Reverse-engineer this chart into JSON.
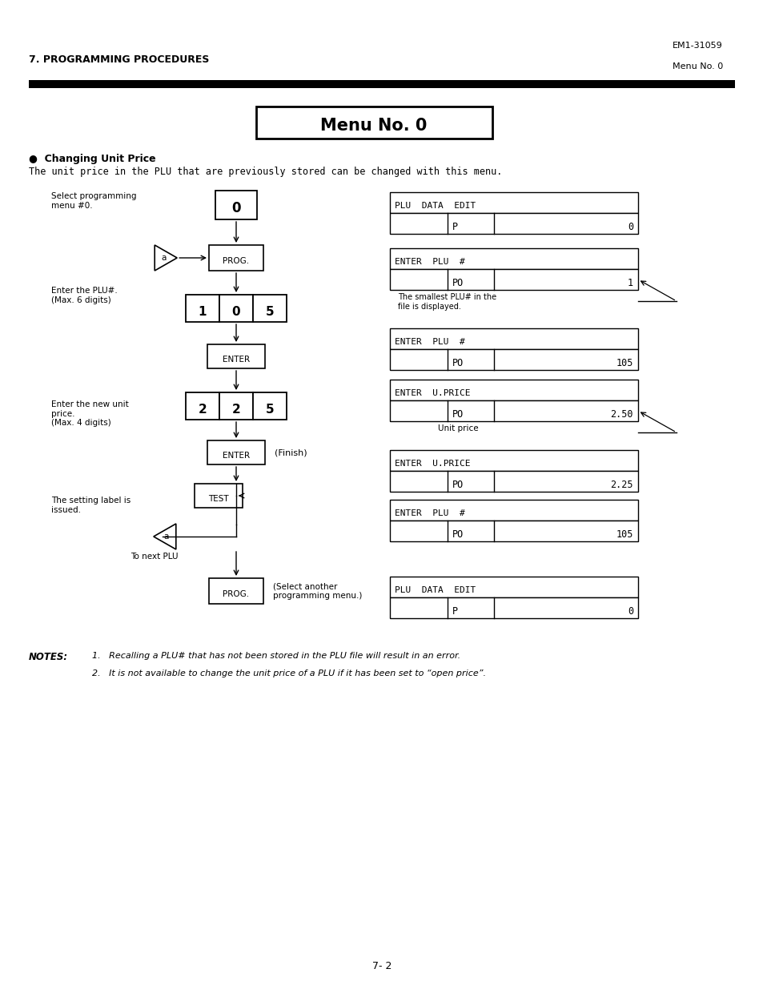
{
  "page_header_left": "7. PROGRAMMING PROCEDURES",
  "page_header_right_top": "EM1-31059",
  "page_header_right_bottom": "Menu No. 0",
  "title": "Menu No. 0",
  "section_bullet": "Changing Unit Price",
  "section_desc": "The unit price in the PLU that are previously stored can be changed with this menu.",
  "notes": [
    "1.   Recalling a PLU# that has not been stored in the PLU file will result in an error.",
    "2.   It is not available to change the unit price of a PLU if it has been set to “open price”."
  ],
  "page_number": "7- 2",
  "background": "#ffffff"
}
